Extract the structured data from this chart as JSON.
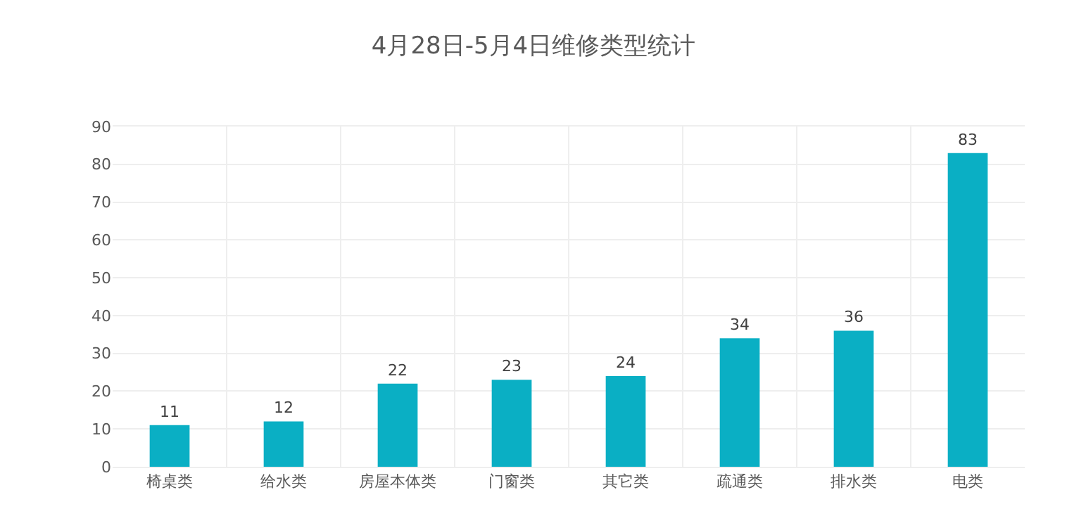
{
  "chart_data": {
    "type": "bar",
    "title": "4月28日-5月4日维修类型统计",
    "categories": [
      "椅桌类",
      "给水类",
      "房屋本体类",
      "门窗类",
      "其它类",
      "疏通类",
      "排水类",
      "电类"
    ],
    "values": [
      11,
      12,
      22,
      23,
      24,
      34,
      36,
      83
    ],
    "color": "#0aafc4",
    "ylim": [
      0,
      90
    ],
    "yticks": [
      0,
      10,
      20,
      30,
      40,
      50,
      60,
      70,
      80,
      90
    ],
    "grid": true,
    "data_labels": true
  }
}
